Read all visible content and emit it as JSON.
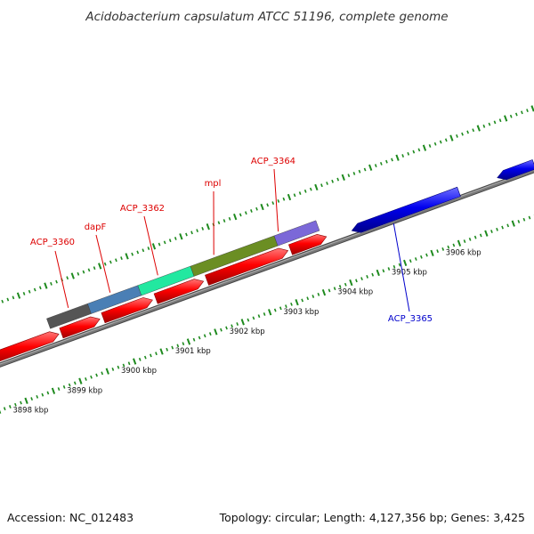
{
  "title": "Acidobacterium capsulatum ATCC 51196, complete genome",
  "footer": {
    "accession": "Accession: NC_012483",
    "summary": "Topology: circular; Length: 4,127,356 bp; Genes: 3,425"
  },
  "colors": {
    "backbone": "#7a7a7a",
    "ticks": "#1e8a1e",
    "forward_label": "#dd0000",
    "reverse_label": "#0000cc"
  },
  "scale_labels": [
    {
      "label": "3898 kbp"
    },
    {
      "label": "3899 kbp"
    },
    {
      "label": "3900 kbp"
    },
    {
      "label": "3901 kbp"
    },
    {
      "label": "3902 kbp"
    },
    {
      "label": "3903 kbp"
    },
    {
      "label": "3904 kbp"
    },
    {
      "label": "3905 kbp"
    },
    {
      "label": "3906 kbp"
    }
  ],
  "gene_labels": [
    {
      "label": "ACP_3360",
      "strand": "forward"
    },
    {
      "label": "dapF",
      "strand": "forward"
    },
    {
      "label": "ACP_3362",
      "strand": "forward"
    },
    {
      "label": "mpl",
      "strand": "forward"
    },
    {
      "label": "ACP_3364",
      "strand": "forward"
    },
    {
      "label": "ACP_3365",
      "strand": "reverse"
    }
  ],
  "features": [
    {
      "color": "#555555"
    },
    {
      "color": "#4a7fb5"
    },
    {
      "color": "#22e8a0"
    },
    {
      "color": "#6b8e23"
    },
    {
      "color": "#7b68d8"
    },
    {
      "color": "#b8b878"
    }
  ]
}
